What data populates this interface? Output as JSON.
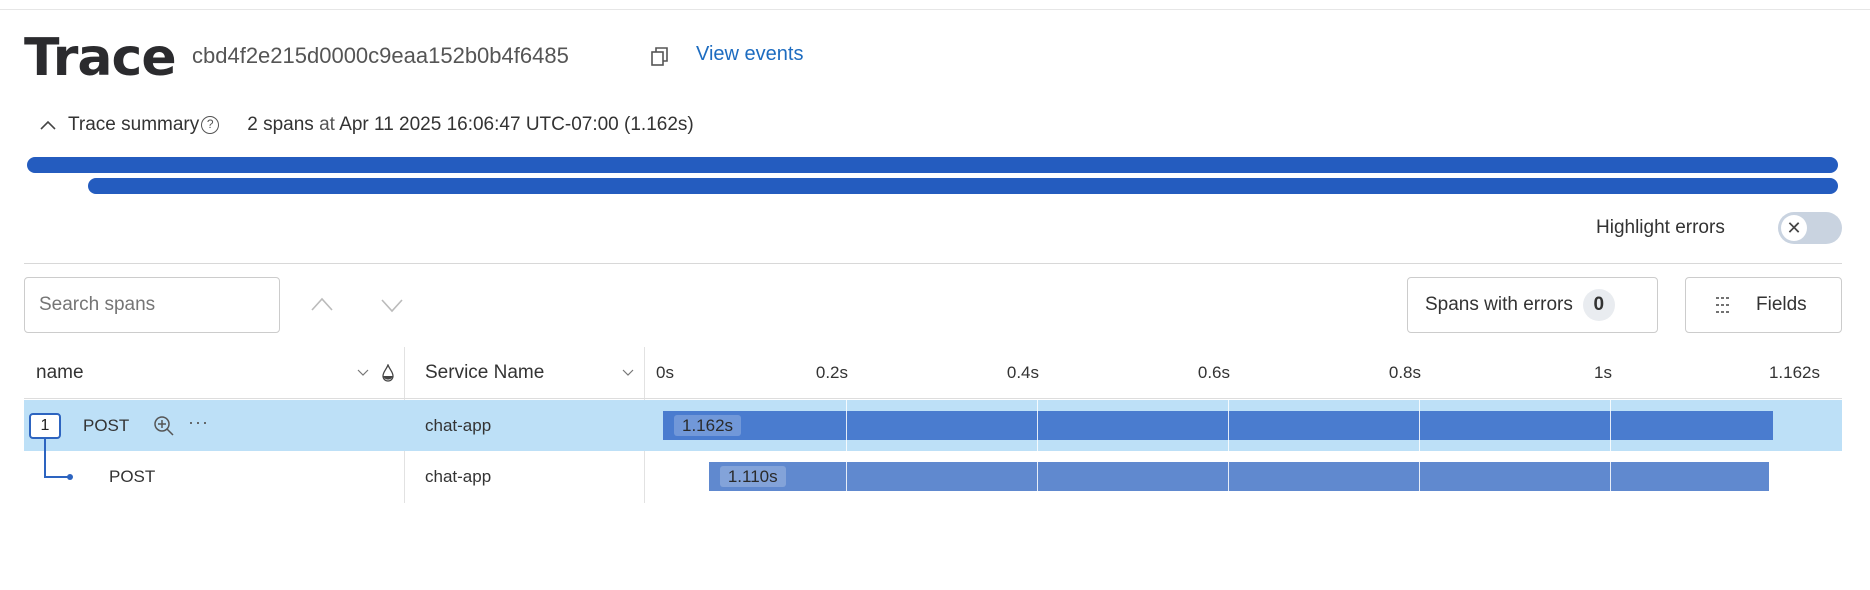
{
  "header": {
    "title": "Trace",
    "trace_id": "cbd4f2e215d0000c9eaa152b0b4f6485",
    "view_events": "View events"
  },
  "summary": {
    "label": "Trace summary",
    "spans_text": "2 spans",
    "at_text": "at",
    "timestamp": "Apr 11 2025 16:06:47 UTC-07:00",
    "duration": "(1.162s)"
  },
  "highlight_errors": {
    "label": "Highlight errors",
    "enabled": false
  },
  "toolbar": {
    "search_placeholder": "Search spans",
    "spans_with_errors_label": "Spans with errors",
    "error_count": "0",
    "fields_label": "Fields"
  },
  "table": {
    "columns": [
      "name",
      "Service Name"
    ],
    "timeline_ticks": [
      {
        "label": "0s",
        "value": 0
      },
      {
        "label": "0.2s",
        "value": 0.2
      },
      {
        "label": "0.4s",
        "value": 0.4
      },
      {
        "label": "0.6s",
        "value": 0.6
      },
      {
        "label": "0.8s",
        "value": 0.8
      },
      {
        "label": "1s",
        "value": 1.0
      },
      {
        "label": "1.162s",
        "value": 1.162
      }
    ],
    "total_duration": 1.162,
    "rows": [
      {
        "child_count": "1",
        "name": "POST",
        "service": "chat-app",
        "start": 0,
        "duration": 1.162,
        "duration_label": "1.162s",
        "selected": true
      },
      {
        "name": "POST",
        "service": "chat-app",
        "start": 0.048,
        "duration": 1.11,
        "duration_label": "1.110s",
        "selected": false
      }
    ]
  },
  "colors": {
    "summary_bar": "#245cbf",
    "root_bar": "#4a7ccf",
    "child_bar": "#6089cf",
    "selected_row": "#bde0f7",
    "link": "#1d6cc0"
  }
}
